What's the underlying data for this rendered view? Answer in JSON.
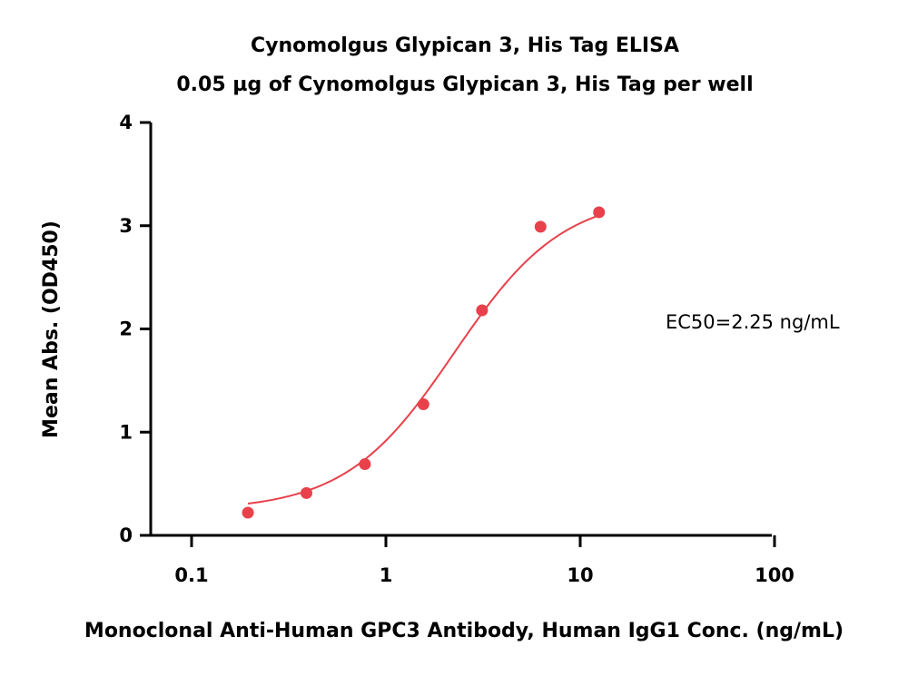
{
  "chart_data": {
    "type": "scatter",
    "title": "Cynomolgus Glypican 3, His Tag ELISA",
    "subtitle": "0.05 µg of Cynomolgus Glypican 3, His Tag per well",
    "xlabel": "Monoclonal Anti-Human GPC3 Antibody, Human IgG1 Conc. (ng/mL)",
    "ylabel": "Mean Abs. (OD450)",
    "xscale": "log",
    "xlim": [
      0.05,
      100
    ],
    "ylim": [
      0,
      4
    ],
    "x_ticks": [
      0.1,
      1,
      10,
      100
    ],
    "x_tick_labels": [
      "0.1",
      "1",
      "10",
      "100"
    ],
    "y_ticks": [
      0,
      1,
      2,
      3,
      4
    ],
    "y_tick_labels": [
      "0",
      "1",
      "2",
      "3",
      "4"
    ],
    "grid": false,
    "color": "#e8414b",
    "points": {
      "x": [
        0.195,
        0.39,
        0.78,
        1.56,
        3.125,
        6.25,
        12.5
      ],
      "y": [
        0.22,
        0.41,
        0.69,
        1.27,
        2.18,
        2.99,
        3.13
      ]
    },
    "fit": {
      "model": "4PL",
      "bottom": 0.24,
      "top": 3.3,
      "ec50": 2.25,
      "hill": 1.55
    },
    "annotation": "EC50=2.25 ng/mL"
  }
}
